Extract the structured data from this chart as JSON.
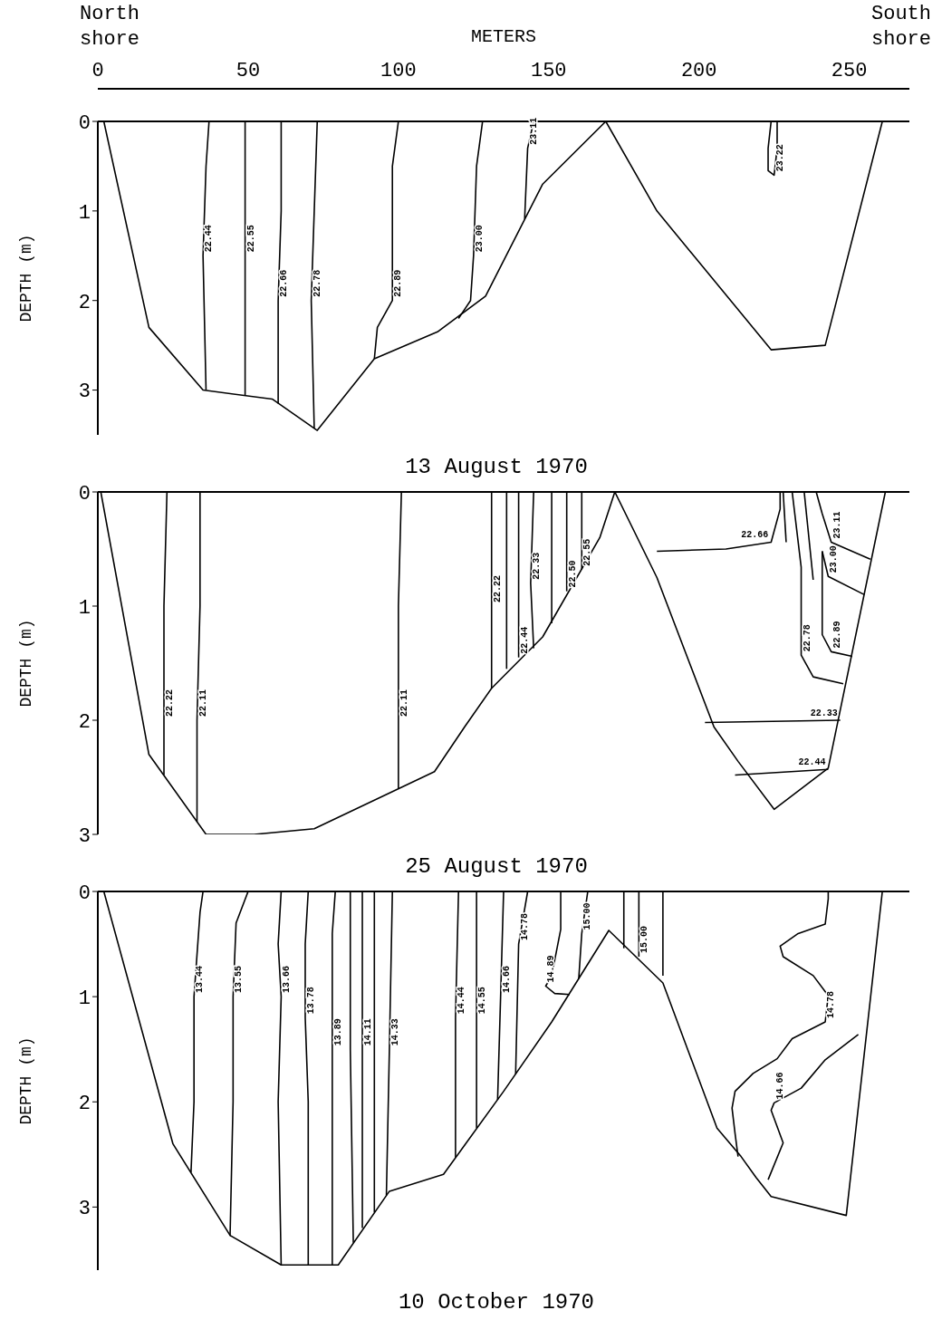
{
  "chart_data": [
    {
      "type": "line",
      "title": "13 August 1970",
      "xlabel": "METERS",
      "ylabel": "DEPTH (m)",
      "annotations": [
        "North shore",
        "South shore"
      ],
      "xlim": [
        0,
        270
      ],
      "xticks": [
        0,
        50,
        100,
        150,
        200,
        250
      ],
      "ylim": [
        3.5,
        0
      ],
      "yticks": [
        0,
        1,
        2,
        3
      ],
      "ref_lines": [
        {
          "axis": "y",
          "value": 0,
          "color": "#000000"
        }
      ],
      "series": [
        {
          "color": "#000000",
          "x": [
            2,
            17,
            35,
            58,
            73,
            92,
            113,
            129,
            148,
            169,
            186,
            224,
            242,
            261
          ],
          "values": [
            0,
            2.3,
            3.0,
            3.1,
            3.45,
            2.65,
            2.35,
            1.95,
            0.7,
            0,
            1.0,
            2.55,
            2.5,
            0
          ]
        },
        {
          "name": "22.44",
          "color": "#000000",
          "x": [
            37,
            36,
            35,
            36
          ],
          "values": [
            0,
            0.5,
            1.5,
            3.0
          ]
        },
        {
          "name": "22.55",
          "color": "#000000",
          "x": [
            49,
            49,
            49
          ],
          "values": [
            0,
            1.5,
            3.06
          ]
        },
        {
          "name": "22.66",
          "color": "#000000",
          "x": [
            61,
            61,
            60,
            60
          ],
          "values": [
            0,
            1,
            2,
            3.15
          ]
        },
        {
          "name": "22.78",
          "color": "#000000",
          "x": [
            73,
            72,
            71,
            72
          ],
          "values": [
            0,
            1,
            2,
            3.43
          ]
        },
        {
          "name": "22.89",
          "color": "#000000",
          "x": [
            100,
            98,
            98,
            93,
            92
          ],
          "values": [
            0,
            0.5,
            2,
            2.3,
            2.65
          ]
        },
        {
          "name": "23.00",
          "color": "#000000",
          "x": [
            128,
            126,
            125,
            124,
            120
          ],
          "values": [
            0,
            0.5,
            1.5,
            2.0,
            2.2
          ]
        },
        {
          "name": "23.11",
          "color": "#000000",
          "x": [
            145,
            143,
            142
          ],
          "values": [
            0,
            0.3,
            1.09
          ]
        },
        {
          "name": "23.22",
          "color": "#000000",
          "x": [
            224,
            223,
            223,
            225,
            226,
            226
          ],
          "values": [
            0,
            0.3,
            0.55,
            0.6,
            0.3,
            0
          ]
        }
      ]
    },
    {
      "type": "line",
      "title": "25 August 1970",
      "ylabel": "DEPTH (m)",
      "tick_labels": "y",
      "xlim": [
        0,
        270
      ],
      "ylim": [
        3,
        0
      ],
      "yticks": [
        0,
        1,
        2,
        3
      ],
      "ref_lines": [
        {
          "axis": "y",
          "value": 0,
          "color": "#000000"
        }
      ],
      "series": [
        {
          "color": "#000000",
          "x": [
            1,
            17,
            36,
            52,
            72,
            112,
            122,
            131,
            148,
            167,
            172,
            186,
            205,
            213,
            225,
            243,
            262
          ],
          "values": [
            0,
            2.3,
            3.0,
            3.0,
            2.95,
            2.45,
            2.06,
            1.72,
            1.27,
            0.4,
            0,
            0.75,
            2.06,
            2.36,
            2.78,
            2.42,
            0
          ]
        },
        {
          "name": "22.22",
          "color": "#000000",
          "x": [
            23,
            22,
            22,
            22
          ],
          "values": [
            0,
            1,
            2,
            2.48
          ]
        },
        {
          "name": "22.11",
          "color": "#000000",
          "x": [
            34,
            34,
            33,
            33
          ],
          "values": [
            0,
            1,
            2,
            2.89
          ]
        },
        {
          "name": "22.11",
          "color": "#000000",
          "x": [
            101,
            100,
            100,
            100
          ],
          "values": [
            0,
            1,
            2,
            2.6
          ]
        },
        {
          "name": "22.22",
          "color": "#000000",
          "x": [
            131,
            131,
            131
          ],
          "values": [
            0,
            1,
            1.72
          ]
        },
        {
          "color": "#000000",
          "x": [
            136,
            136,
            136
          ],
          "values": [
            0,
            1,
            1.55
          ]
        },
        {
          "name": "22.44",
          "color": "#000000",
          "x": [
            140,
            140
          ],
          "values": [
            0,
            1.45
          ]
        },
        {
          "name": "22.33",
          "color": "#000000",
          "x": [
            145,
            144,
            145
          ],
          "values": [
            0,
            0.8,
            1.37
          ]
        },
        {
          "color": "#000000",
          "x": [
            151,
            151
          ],
          "values": [
            0,
            1.15
          ]
        },
        {
          "name": "22.50",
          "color": "#000000",
          "x": [
            156,
            156
          ],
          "values": [
            0,
            0.87
          ]
        },
        {
          "name": "22.55",
          "color": "#000000",
          "x": [
            161,
            161
          ],
          "values": [
            0,
            0.68
          ]
        },
        {
          "name": "22.66",
          "color": "#000000",
          "x": [
            227,
            227,
            224,
            209,
            186
          ],
          "values": [
            0,
            0.15,
            0.44,
            0.5,
            0.52
          ]
        },
        {
          "color": "#000000",
          "x": [
            228,
            229
          ],
          "values": [
            0,
            0.44
          ]
        },
        {
          "name": "22.78",
          "color": "#000000",
          "x": [
            231,
            234,
            234,
            238,
            248
          ],
          "values": [
            0,
            0.66,
            1.43,
            1.62,
            1.68
          ]
        },
        {
          "color": "#000000",
          "x": [
            235,
            238
          ],
          "values": [
            0,
            0.77
          ]
        },
        {
          "name": "22.89",
          "color": "#000000",
          "x": [
            241,
            241,
            244,
            251
          ],
          "values": [
            0.52,
            1.25,
            1.4,
            1.44
          ]
        },
        {
          "name": "23.00",
          "color": "#000000",
          "x": [
            241,
            243,
            255
          ],
          "values": [
            0.52,
            0.74,
            0.9
          ]
        },
        {
          "name": "23.11",
          "color": "#000000",
          "x": [
            239,
            241,
            244,
            257
          ],
          "values": [
            0,
            0.19,
            0.44,
            0.59
          ]
        },
        {
          "name": "22.33",
          "color": "#000000",
          "x": [
            202,
            247
          ],
          "values": [
            2.02,
            2.0
          ]
        },
        {
          "name": "22.44",
          "color": "#000000",
          "x": [
            212,
            243
          ],
          "values": [
            2.48,
            2.43
          ]
        }
      ]
    },
    {
      "type": "line",
      "title": "10 October 1970",
      "ylabel": "DEPTH (m)",
      "tick_labels": "y",
      "xlim": [
        0,
        270
      ],
      "ylim": [
        3.6,
        0
      ],
      "yticks": [
        0,
        1,
        2,
        3
      ],
      "ref_lines": [
        {
          "axis": "y",
          "value": 0,
          "color": "#000000"
        }
      ],
      "series": [
        {
          "color": "#000000",
          "x": [
            2,
            25,
            44,
            61,
            80,
            97,
            115,
            135,
            151,
            170,
            188,
            206,
            214,
            219,
            224,
            249,
            261
          ],
          "values": [
            0,
            2.4,
            3.27,
            3.55,
            3.55,
            2.85,
            2.69,
            1.9,
            1.24,
            0.37,
            0.87,
            2.25,
            2.52,
            2.72,
            2.9,
            3.08,
            0
          ]
        },
        {
          "name": "13.44",
          "color": "#000000",
          "x": [
            35,
            34,
            32,
            32,
            31
          ],
          "values": [
            0,
            0.2,
            1.0,
            2,
            2.67
          ]
        },
        {
          "name": "13.55",
          "color": "#000000",
          "x": [
            50,
            46,
            45,
            45,
            44
          ],
          "values": [
            0,
            0.3,
            1,
            2,
            3.27
          ]
        },
        {
          "name": "13.66",
          "color": "#000000",
          "x": [
            61,
            60,
            61,
            60,
            61
          ],
          "values": [
            0,
            0.5,
            1,
            2,
            3.55
          ]
        },
        {
          "name": "13.78",
          "color": "#000000",
          "x": [
            70,
            69,
            69,
            70,
            70
          ],
          "values": [
            0,
            0.5,
            1.2,
            2,
            3.55
          ]
        },
        {
          "name": "13.89",
          "color": "#000000",
          "x": [
            79,
            78,
            78,
            78
          ],
          "values": [
            0,
            0.4,
            1.5,
            3.55
          ]
        },
        {
          "color": "#000000",
          "x": [
            84,
            84,
            85
          ],
          "values": [
            0,
            1.5,
            3.34
          ]
        },
        {
          "name": "14.11",
          "color": "#000000",
          "x": [
            88,
            88,
            88
          ],
          "values": [
            0,
            1.5,
            3.2
          ]
        },
        {
          "color": "#000000",
          "x": [
            92,
            92,
            92
          ],
          "values": [
            0,
            1.5,
            3.05
          ]
        },
        {
          "name": "14.33",
          "color": "#000000",
          "x": [
            98,
            97,
            96
          ],
          "values": [
            0,
            1.5,
            2.89
          ]
        },
        {
          "name": "14.44",
          "color": "#000000",
          "x": [
            120,
            119,
            119
          ],
          "values": [
            0,
            1.2,
            2.53
          ]
        },
        {
          "name": "14.55",
          "color": "#000000",
          "x": [
            126,
            126,
            126
          ],
          "values": [
            0,
            1.2,
            2.25
          ]
        },
        {
          "name": "14.66",
          "color": "#000000",
          "x": [
            135,
            134,
            133
          ],
          "values": [
            0,
            1,
            1.98
          ]
        },
        {
          "name": "14.78",
          "color": "#000000",
          "x": [
            143,
            140,
            139
          ],
          "values": [
            0,
            0.5,
            1.74
          ]
        },
        {
          "name": "14.89",
          "color": "#000000",
          "x": [
            154,
            154,
            151,
            149,
            152,
            157
          ],
          "values": [
            0,
            0.36,
            0.8,
            0.9,
            0.97,
            0.98
          ]
        },
        {
          "name": "15.00",
          "color": "#000000",
          "x": [
            163,
            161,
            160
          ],
          "values": [
            0,
            0.4,
            0.83
          ]
        },
        {
          "color": "#000000",
          "x": [
            175,
            175
          ],
          "values": [
            0,
            0.54
          ]
        },
        {
          "name": "15.00",
          "color": "#000000",
          "x": [
            180,
            180
          ],
          "values": [
            0,
            0.62
          ]
        },
        {
          "color": "#000000",
          "x": [
            188,
            188
          ],
          "values": [
            0,
            0.8
          ]
        },
        {
          "name": "14.78",
          "color": "#000000",
          "x": [
            243,
            243,
            242,
            233,
            227,
            228,
            238,
            243,
            242,
            231,
            226,
            218,
            212,
            211,
            212,
            213
          ],
          "values": [
            0,
            0.07,
            0.31,
            0.4,
            0.52,
            0.62,
            0.8,
            0.99,
            1.24,
            1.4,
            1.59,
            1.73,
            1.9,
            2.06,
            2.3,
            2.52
          ]
        },
        {
          "name": "14.66",
          "color": "#000000",
          "x": [
            253,
            242,
            234,
            225,
            224,
            228,
            223
          ],
          "values": [
            1.36,
            1.6,
            1.87,
            2.01,
            2.08,
            2.39,
            2.74
          ]
        }
      ]
    }
  ]
}
